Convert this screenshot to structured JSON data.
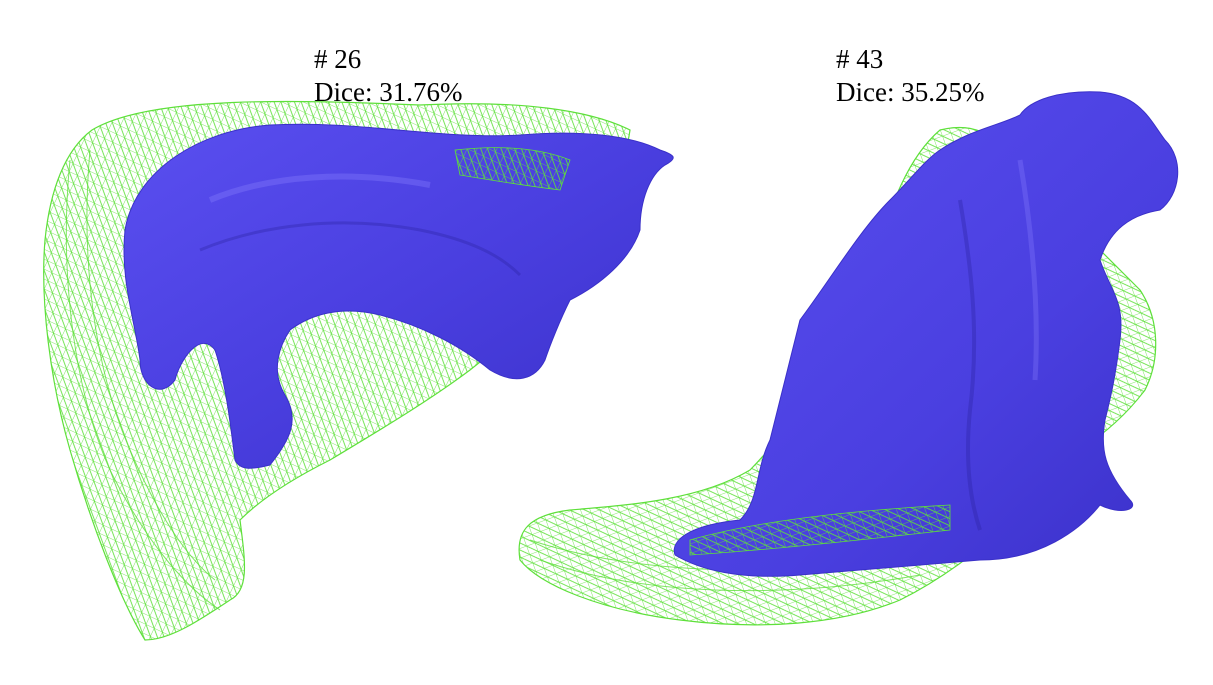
{
  "panels": [
    {
      "case_label": "# 26",
      "dice_label": "Dice: 31.76%"
    },
    {
      "case_label": "# 43",
      "dice_label": "Dice: 35.25%"
    }
  ],
  "colors": {
    "prediction_surface": "#4a3fe0",
    "prediction_highlight": "#7a6ff0",
    "ground_truth_wireframe": "#5ee03a",
    "background": "#ffffff"
  }
}
